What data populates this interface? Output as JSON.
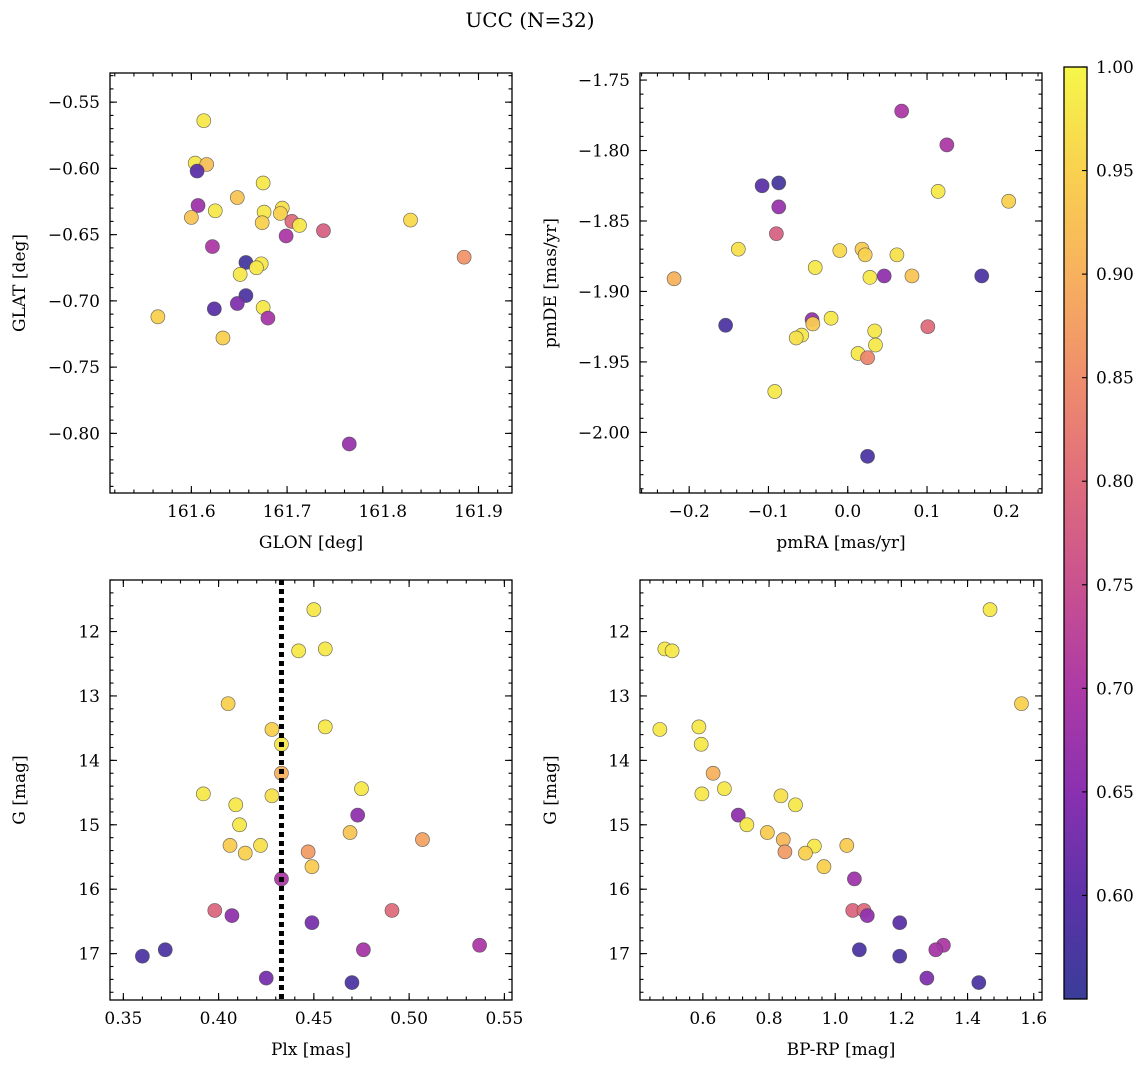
{
  "figure": {
    "title": "UCC (N=32)"
  },
  "colorbar": {
    "vmin": 0.55,
    "vmax": 1.0,
    "ticks": [
      0.6,
      0.65,
      0.7,
      0.75,
      0.8,
      0.85,
      0.9,
      0.95,
      1.0
    ],
    "tick_labels": [
      "0.60",
      "0.65",
      "0.70",
      "0.75",
      "0.80",
      "0.85",
      "0.90",
      "0.95",
      "1.00"
    ],
    "colormap": "plasma",
    "stops": [
      "#3a3d98",
      "#5c32a8",
      "#8a31b0",
      "#ad3aa6",
      "#c9528f",
      "#df6d7c",
      "#ef8e6c",
      "#f7b15e",
      "#f9d14f",
      "#f5f749"
    ]
  },
  "chart_data": [
    {
      "type": "scatter",
      "title": "",
      "xlabel": "GLON [deg]",
      "ylabel": "GLAT [deg]",
      "xlim": [
        161.515,
        161.935
      ],
      "ylim": [
        -0.845,
        -0.528
      ],
      "xticks": [
        161.6,
        161.7,
        161.8,
        161.9
      ],
      "xtick_labels": [
        "161.6",
        "161.7",
        "161.8",
        "161.9"
      ],
      "yticks": [
        -0.55,
        -0.6,
        -0.65,
        -0.7,
        -0.75,
        -0.8
      ],
      "ytick_labels": [
        "−0.55",
        "−0.60",
        "−0.65",
        "−0.70",
        "−0.75",
        "−0.80"
      ],
      "invert_y": false,
      "points": [
        {
          "x": 161.613,
          "y": -0.564,
          "c": 0.98
        },
        {
          "x": 161.604,
          "y": -0.596,
          "c": 0.98
        },
        {
          "x": 161.616,
          "y": -0.597,
          "c": 0.92
        },
        {
          "x": 161.606,
          "y": -0.602,
          "c": 0.6
        },
        {
          "x": 161.675,
          "y": -0.611,
          "c": 0.98
        },
        {
          "x": 161.648,
          "y": -0.622,
          "c": 0.93
        },
        {
          "x": 161.607,
          "y": -0.628,
          "c": 0.68
        },
        {
          "x": 161.695,
          "y": -0.63,
          "c": 0.97
        },
        {
          "x": 161.625,
          "y": -0.632,
          "c": 0.98
        },
        {
          "x": 161.676,
          "y": -0.633,
          "c": 0.98
        },
        {
          "x": 161.693,
          "y": -0.634,
          "c": 0.95
        },
        {
          "x": 161.6,
          "y": -0.637,
          "c": 0.93
        },
        {
          "x": 161.829,
          "y": -0.639,
          "c": 0.96
        },
        {
          "x": 161.705,
          "y": -0.64,
          "c": 0.8
        },
        {
          "x": 161.674,
          "y": -0.641,
          "c": 0.95
        },
        {
          "x": 161.713,
          "y": -0.643,
          "c": 0.98
        },
        {
          "x": 161.738,
          "y": -0.647,
          "c": 0.78
        },
        {
          "x": 161.699,
          "y": -0.651,
          "c": 0.7
        },
        {
          "x": 161.622,
          "y": -0.659,
          "c": 0.7
        },
        {
          "x": 161.885,
          "y": -0.667,
          "c": 0.86
        },
        {
          "x": 161.657,
          "y": -0.671,
          "c": 0.57
        },
        {
          "x": 161.673,
          "y": -0.672,
          "c": 0.98
        },
        {
          "x": 161.668,
          "y": -0.675,
          "c": 0.98
        },
        {
          "x": 161.651,
          "y": -0.68,
          "c": 0.98
        },
        {
          "x": 161.657,
          "y": -0.696,
          "c": 0.58
        },
        {
          "x": 161.648,
          "y": -0.702,
          "c": 0.64
        },
        {
          "x": 161.675,
          "y": -0.705,
          "c": 0.98
        },
        {
          "x": 161.624,
          "y": -0.706,
          "c": 0.6
        },
        {
          "x": 161.565,
          "y": -0.712,
          "c": 0.95
        },
        {
          "x": 161.68,
          "y": -0.713,
          "c": 0.69
        },
        {
          "x": 161.633,
          "y": -0.728,
          "c": 0.95
        },
        {
          "x": 161.765,
          "y": -0.808,
          "c": 0.67
        }
      ]
    },
    {
      "type": "scatter",
      "title": "",
      "xlabel": "pmRA [mas/yr]",
      "ylabel": "pmDE [mas/yr]",
      "xlim": [
        -0.262,
        0.245
      ],
      "ylim": [
        -2.043,
        -1.745
      ],
      "xticks": [
        -0.2,
        -0.1,
        0.0,
        0.1,
        0.2
      ],
      "xtick_labels": [
        "−0.2",
        "−0.1",
        "0.0",
        "0.1",
        "0.2"
      ],
      "yticks": [
        -1.75,
        -1.8,
        -1.85,
        -1.9,
        -1.95,
        -2.0
      ],
      "ytick_labels": [
        "−1.75",
        "−1.80",
        "−1.85",
        "−1.90",
        "−1.95",
        "−2.00"
      ],
      "invert_y": false,
      "points": [
        {
          "x": 0.068,
          "y": -1.772,
          "c": 0.7
        },
        {
          "x": 0.125,
          "y": -1.796,
          "c": 0.7
        },
        {
          "x": -0.087,
          "y": -1.823,
          "c": 0.57
        },
        {
          "x": -0.108,
          "y": -1.825,
          "c": 0.6
        },
        {
          "x": 0.114,
          "y": -1.829,
          "c": 0.98
        },
        {
          "x": 0.203,
          "y": -1.836,
          "c": 0.95
        },
        {
          "x": -0.087,
          "y": -1.84,
          "c": 0.67
        },
        {
          "x": -0.09,
          "y": -1.859,
          "c": 0.78
        },
        {
          "x": -0.138,
          "y": -1.87,
          "c": 0.97
        },
        {
          "x": 0.018,
          "y": -1.87,
          "c": 0.94
        },
        {
          "x": -0.01,
          "y": -1.871,
          "c": 0.96
        },
        {
          "x": 0.022,
          "y": -1.874,
          "c": 0.95
        },
        {
          "x": 0.062,
          "y": -1.874,
          "c": 0.97
        },
        {
          "x": -0.041,
          "y": -1.883,
          "c": 0.98
        },
        {
          "x": -0.219,
          "y": -1.891,
          "c": 0.9
        },
        {
          "x": 0.081,
          "y": -1.889,
          "c": 0.93
        },
        {
          "x": 0.046,
          "y": -1.889,
          "c": 0.66
        },
        {
          "x": 0.028,
          "y": -1.89,
          "c": 0.98
        },
        {
          "x": 0.169,
          "y": -1.889,
          "c": 0.58
        },
        {
          "x": -0.021,
          "y": -1.919,
          "c": 0.98
        },
        {
          "x": -0.045,
          "y": -1.92,
          "c": 0.67
        },
        {
          "x": -0.044,
          "y": -1.923,
          "c": 0.94
        },
        {
          "x": -0.154,
          "y": -1.924,
          "c": 0.58
        },
        {
          "x": 0.101,
          "y": -1.925,
          "c": 0.8
        },
        {
          "x": 0.034,
          "y": -1.928,
          "c": 0.98
        },
        {
          "x": -0.058,
          "y": -1.931,
          "c": 0.98
        },
        {
          "x": -0.065,
          "y": -1.933,
          "c": 0.97
        },
        {
          "x": 0.035,
          "y": -1.938,
          "c": 0.98
        },
        {
          "x": 0.013,
          "y": -1.944,
          "c": 0.98
        },
        {
          "x": 0.025,
          "y": -1.947,
          "c": 0.84
        },
        {
          "x": -0.092,
          "y": -1.971,
          "c": 0.98
        },
        {
          "x": 0.025,
          "y": -2.017,
          "c": 0.58
        }
      ]
    },
    {
      "type": "scatter",
      "title": "",
      "xlabel": "Plx [mas]",
      "ylabel": "G [mag]",
      "xlim": [
        0.343,
        0.554
      ],
      "ylim": [
        17.72,
        11.2
      ],
      "xticks": [
        0.35,
        0.4,
        0.45,
        0.5,
        0.55
      ],
      "xtick_labels": [
        "0.35",
        "0.40",
        "0.45",
        "0.50",
        "0.55"
      ],
      "yticks": [
        12,
        13,
        14,
        15,
        16,
        17
      ],
      "ytick_labels": [
        "12",
        "13",
        "14",
        "15",
        "16",
        "17"
      ],
      "invert_y": true,
      "vline": 0.433,
      "points": [
        {
          "x": 0.45,
          "y": 11.66,
          "c": 0.98
        },
        {
          "x": 0.442,
          "y": 12.3,
          "c": 0.98
        },
        {
          "x": 0.456,
          "y": 12.27,
          "c": 0.98
        },
        {
          "x": 0.405,
          "y": 13.12,
          "c": 0.95
        },
        {
          "x": 0.428,
          "y": 13.52,
          "c": 0.95
        },
        {
          "x": 0.456,
          "y": 13.48,
          "c": 0.98
        },
        {
          "x": 0.433,
          "y": 13.75,
          "c": 0.98
        },
        {
          "x": 0.433,
          "y": 14.2,
          "c": 0.9
        },
        {
          "x": 0.475,
          "y": 14.44,
          "c": 0.98
        },
        {
          "x": 0.392,
          "y": 14.52,
          "c": 0.98
        },
        {
          "x": 0.428,
          "y": 14.55,
          "c": 0.97
        },
        {
          "x": 0.409,
          "y": 14.69,
          "c": 0.98
        },
        {
          "x": 0.473,
          "y": 14.85,
          "c": 0.66
        },
        {
          "x": 0.411,
          "y": 15.0,
          "c": 0.98
        },
        {
          "x": 0.469,
          "y": 15.12,
          "c": 0.93
        },
        {
          "x": 0.507,
          "y": 15.23,
          "c": 0.88
        },
        {
          "x": 0.406,
          "y": 15.32,
          "c": 0.94
        },
        {
          "x": 0.422,
          "y": 15.32,
          "c": 0.97
        },
        {
          "x": 0.447,
          "y": 15.42,
          "c": 0.87
        },
        {
          "x": 0.414,
          "y": 15.44,
          "c": 0.95
        },
        {
          "x": 0.449,
          "y": 15.65,
          "c": 0.94
        },
        {
          "x": 0.433,
          "y": 15.84,
          "c": 0.7
        },
        {
          "x": 0.398,
          "y": 16.33,
          "c": 0.79
        },
        {
          "x": 0.491,
          "y": 16.33,
          "c": 0.8
        },
        {
          "x": 0.407,
          "y": 16.41,
          "c": 0.66
        },
        {
          "x": 0.449,
          "y": 16.52,
          "c": 0.63
        },
        {
          "x": 0.537,
          "y": 16.87,
          "c": 0.7
        },
        {
          "x": 0.476,
          "y": 16.94,
          "c": 0.69
        },
        {
          "x": 0.372,
          "y": 16.94,
          "c": 0.58
        },
        {
          "x": 0.36,
          "y": 17.04,
          "c": 0.58
        },
        {
          "x": 0.425,
          "y": 17.38,
          "c": 0.63
        },
        {
          "x": 0.47,
          "y": 17.45,
          "c": 0.58
        }
      ]
    },
    {
      "type": "scatter",
      "title": "",
      "xlabel": "BP-RP [mag]",
      "ylabel": "G [mag]",
      "xlim": [
        0.41,
        1.625
      ],
      "ylim": [
        17.72,
        11.2
      ],
      "xticks": [
        0.6,
        0.8,
        1.0,
        1.2,
        1.4,
        1.6
      ],
      "xtick_labels": [
        "0.6",
        "0.8",
        "1.0",
        "1.2",
        "1.4",
        "1.6"
      ],
      "yticks": [
        12,
        13,
        14,
        15,
        16,
        17
      ],
      "ytick_labels": [
        "12",
        "13",
        "14",
        "15",
        "16",
        "17"
      ],
      "invert_y": true,
      "points": [
        {
          "x": 1.468,
          "y": 11.66,
          "c": 0.98
        },
        {
          "x": 0.485,
          "y": 12.27,
          "c": 0.98
        },
        {
          "x": 0.507,
          "y": 12.3,
          "c": 0.98
        },
        {
          "x": 1.563,
          "y": 13.12,
          "c": 0.95
        },
        {
          "x": 0.47,
          "y": 13.52,
          "c": 0.98
        },
        {
          "x": 0.588,
          "y": 13.48,
          "c": 0.98
        },
        {
          "x": 0.595,
          "y": 13.75,
          "c": 0.98
        },
        {
          "x": 0.631,
          "y": 14.2,
          "c": 0.9
        },
        {
          "x": 0.665,
          "y": 14.44,
          "c": 0.98
        },
        {
          "x": 0.597,
          "y": 14.52,
          "c": 0.98
        },
        {
          "x": 0.836,
          "y": 14.55,
          "c": 0.97
        },
        {
          "x": 0.88,
          "y": 14.69,
          "c": 0.98
        },
        {
          "x": 0.707,
          "y": 14.85,
          "c": 0.66
        },
        {
          "x": 0.733,
          "y": 15.0,
          "c": 0.98
        },
        {
          "x": 0.795,
          "y": 15.12,
          "c": 0.94
        },
        {
          "x": 0.843,
          "y": 15.23,
          "c": 0.91
        },
        {
          "x": 1.035,
          "y": 15.32,
          "c": 0.94
        },
        {
          "x": 0.937,
          "y": 15.33,
          "c": 0.98
        },
        {
          "x": 0.848,
          "y": 15.42,
          "c": 0.87
        },
        {
          "x": 0.91,
          "y": 15.44,
          "c": 0.95
        },
        {
          "x": 0.966,
          "y": 15.65,
          "c": 0.95
        },
        {
          "x": 1.058,
          "y": 15.84,
          "c": 0.68
        },
        {
          "x": 1.053,
          "y": 16.33,
          "c": 0.79
        },
        {
          "x": 1.087,
          "y": 16.33,
          "c": 0.8
        },
        {
          "x": 1.097,
          "y": 16.41,
          "c": 0.66
        },
        {
          "x": 1.195,
          "y": 16.52,
          "c": 0.6
        },
        {
          "x": 1.327,
          "y": 16.87,
          "c": 0.7
        },
        {
          "x": 1.304,
          "y": 16.94,
          "c": 0.69
        },
        {
          "x": 1.073,
          "y": 16.94,
          "c": 0.58
        },
        {
          "x": 1.195,
          "y": 17.04,
          "c": 0.58
        },
        {
          "x": 1.277,
          "y": 17.38,
          "c": 0.64
        },
        {
          "x": 1.434,
          "y": 17.45,
          "c": 0.58
        }
      ]
    }
  ]
}
